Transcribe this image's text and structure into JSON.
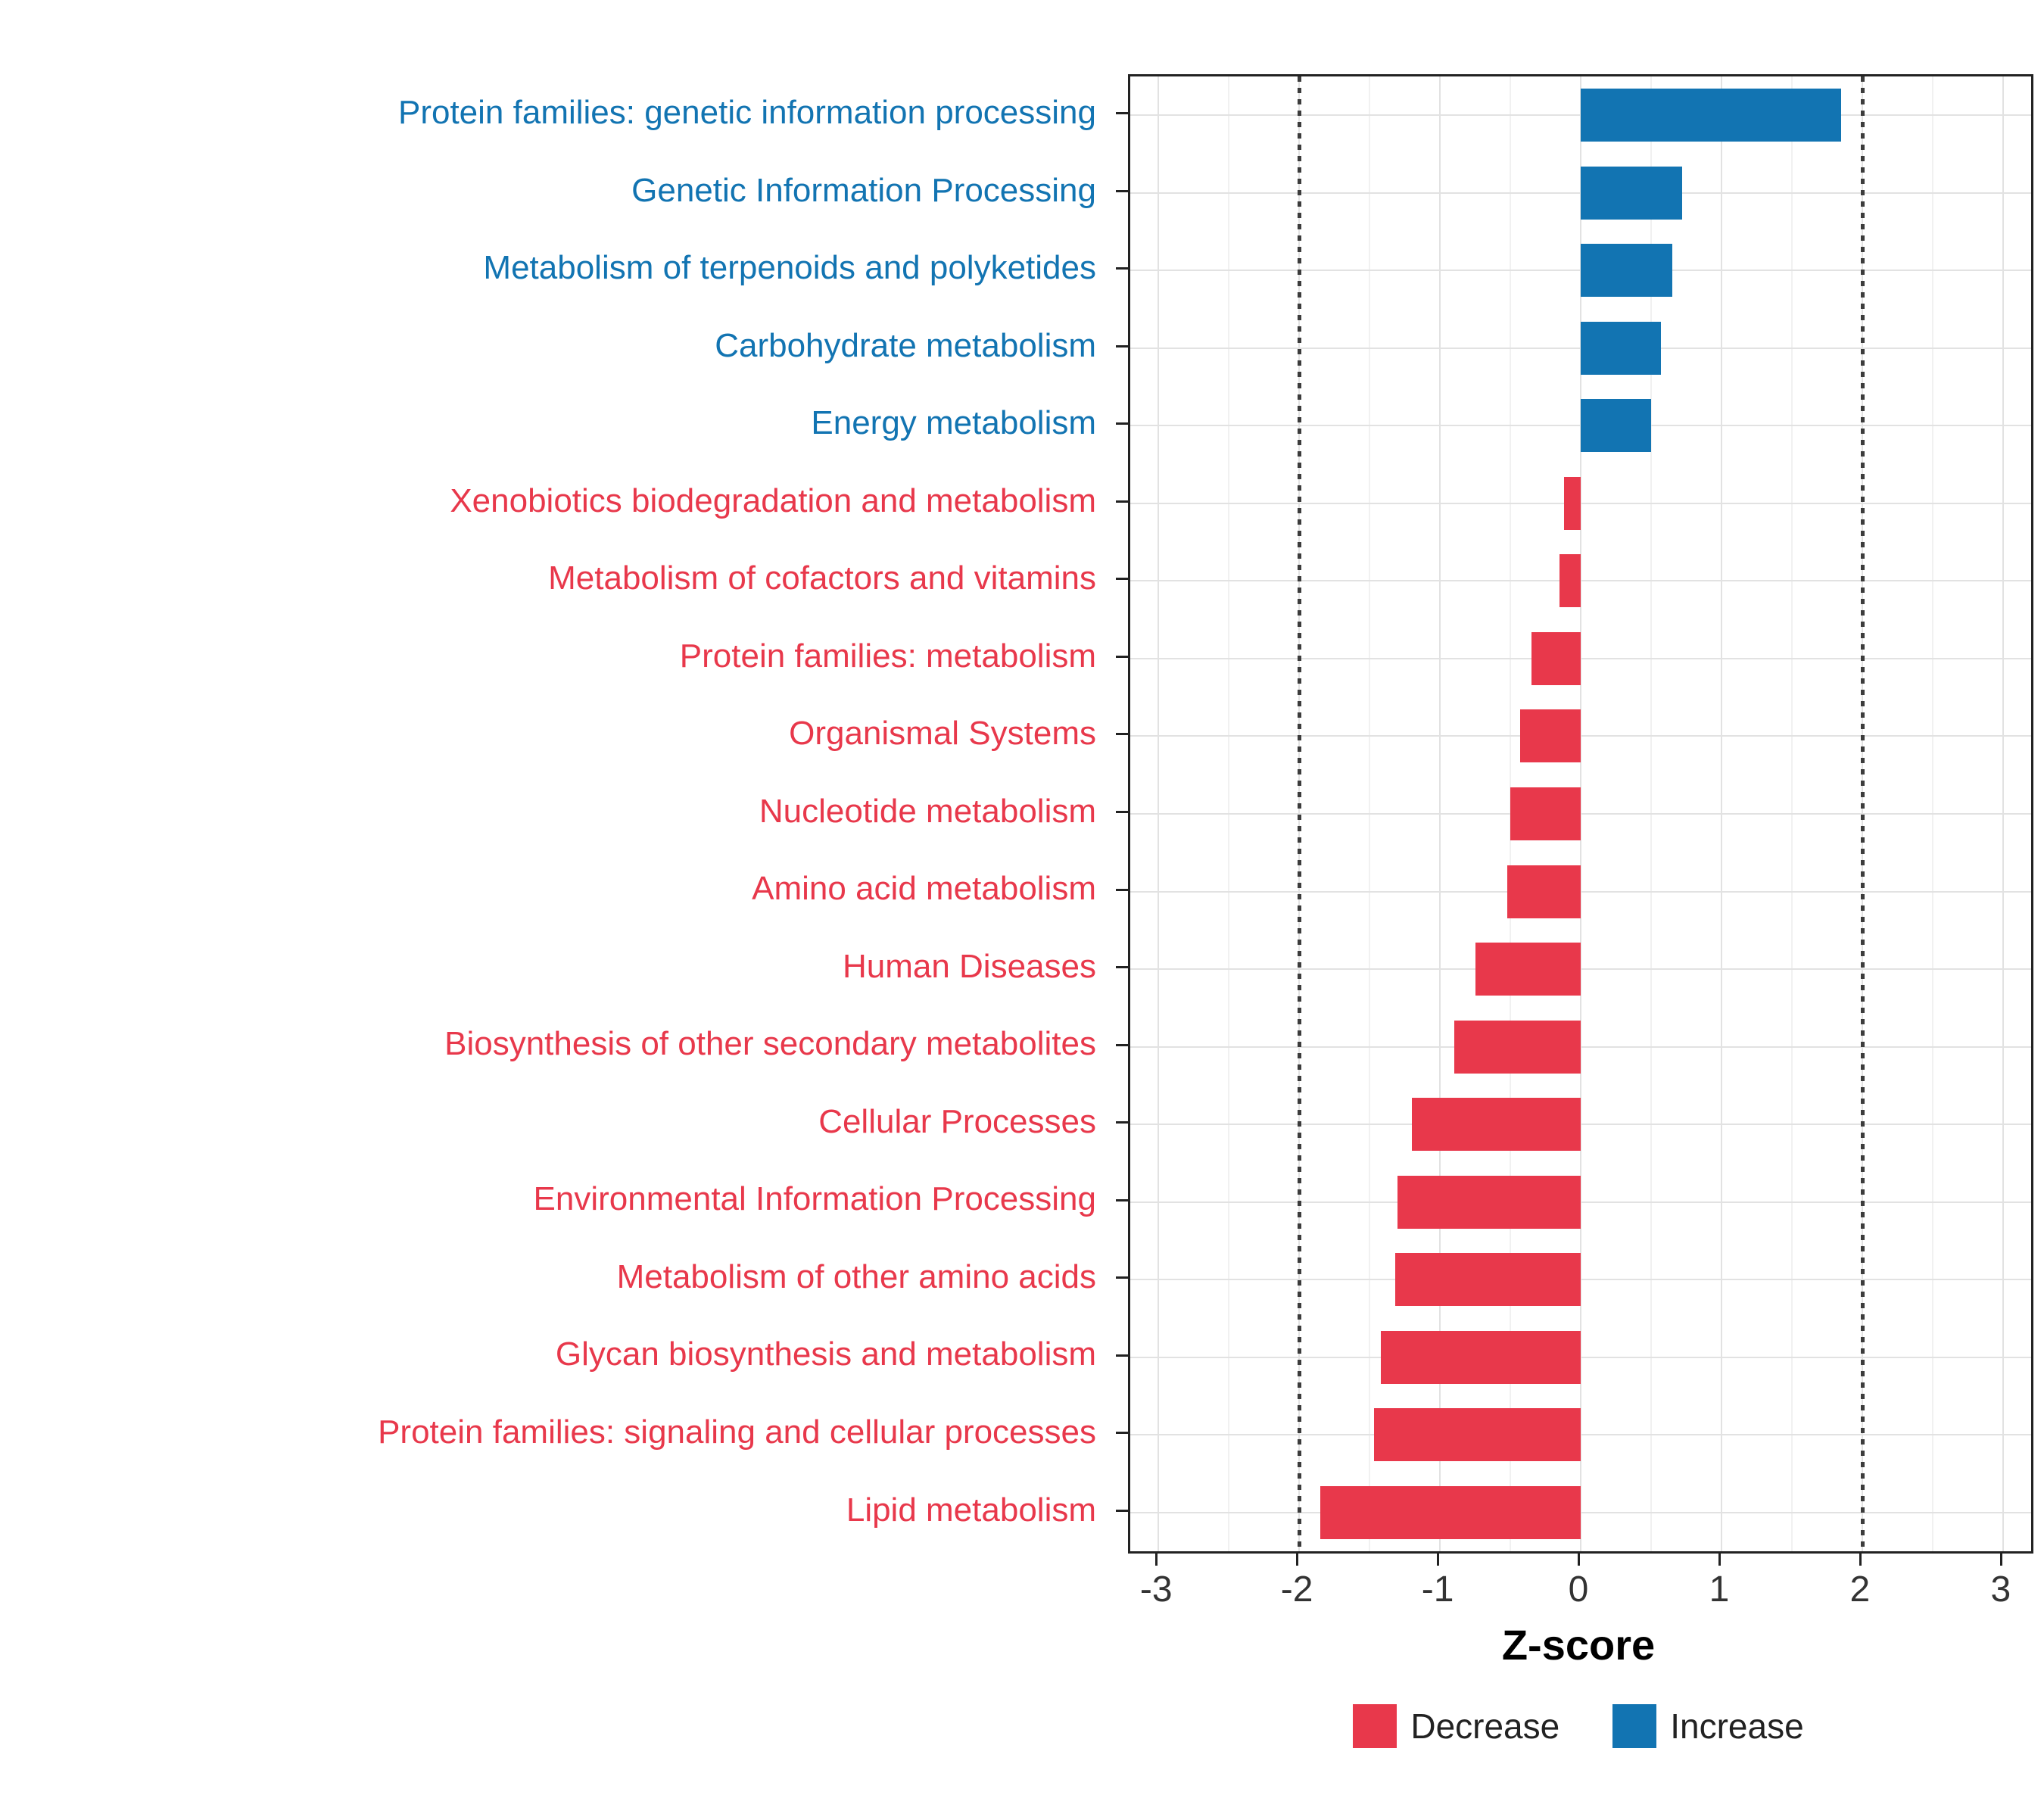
{
  "chart_data": {
    "type": "bar",
    "orientation": "horizontal",
    "title": "",
    "xlabel": "Z-score",
    "ylabel": "",
    "xlim": [
      -3.2,
      3.2
    ],
    "x_ticks": [
      -3,
      -2,
      -1,
      0,
      1,
      2,
      3
    ],
    "x_minor_ticks": [
      -2.5,
      -1.5,
      -0.5,
      0.5,
      1.5,
      2.5
    ],
    "reference_lines": [
      -2,
      2
    ],
    "grid": true,
    "colors": {
      "Decrease": "#E8384B",
      "Increase": "#1274B2"
    },
    "bars": [
      {
        "label": "Protein families: genetic information processing",
        "value": 1.85,
        "group": "Increase"
      },
      {
        "label": "Genetic Information Processing",
        "value": 0.72,
        "group": "Increase"
      },
      {
        "label": "Metabolism of terpenoids and polyketides",
        "value": 0.65,
        "group": "Increase"
      },
      {
        "label": "Carbohydrate metabolism",
        "value": 0.57,
        "group": "Increase"
      },
      {
        "label": "Energy metabolism",
        "value": 0.5,
        "group": "Increase"
      },
      {
        "label": "Xenobiotics biodegradation and metabolism",
        "value": -0.12,
        "group": "Decrease"
      },
      {
        "label": "Metabolism of cofactors and vitamins",
        "value": -0.15,
        "group": "Decrease"
      },
      {
        "label": "Protein families: metabolism",
        "value": -0.35,
        "group": "Decrease"
      },
      {
        "label": "Organismal Systems",
        "value": -0.43,
        "group": "Decrease"
      },
      {
        "label": "Nucleotide metabolism",
        "value": -0.5,
        "group": "Decrease"
      },
      {
        "label": "Amino acid metabolism",
        "value": -0.52,
        "group": "Decrease"
      },
      {
        "label": "Human Diseases",
        "value": -0.75,
        "group": "Decrease"
      },
      {
        "label": "Biosynthesis of other secondary metabolites",
        "value": -0.9,
        "group": "Decrease"
      },
      {
        "label": "Cellular Processes",
        "value": -1.2,
        "group": "Decrease"
      },
      {
        "label": "Environmental Information Processing",
        "value": -1.3,
        "group": "Decrease"
      },
      {
        "label": "Metabolism of other amino acids",
        "value": -1.32,
        "group": "Decrease"
      },
      {
        "label": "Glycan biosynthesis and metabolism",
        "value": -1.42,
        "group": "Decrease"
      },
      {
        "label": "Protein families: signaling and cellular processes",
        "value": -1.47,
        "group": "Decrease"
      },
      {
        "label": "Lipid metabolism",
        "value": -1.85,
        "group": "Decrease"
      }
    ],
    "legend": {
      "position": "bottom-center",
      "items": [
        {
          "label": "Decrease",
          "key": "Decrease"
        },
        {
          "label": "Increase",
          "key": "Increase"
        }
      ]
    }
  }
}
